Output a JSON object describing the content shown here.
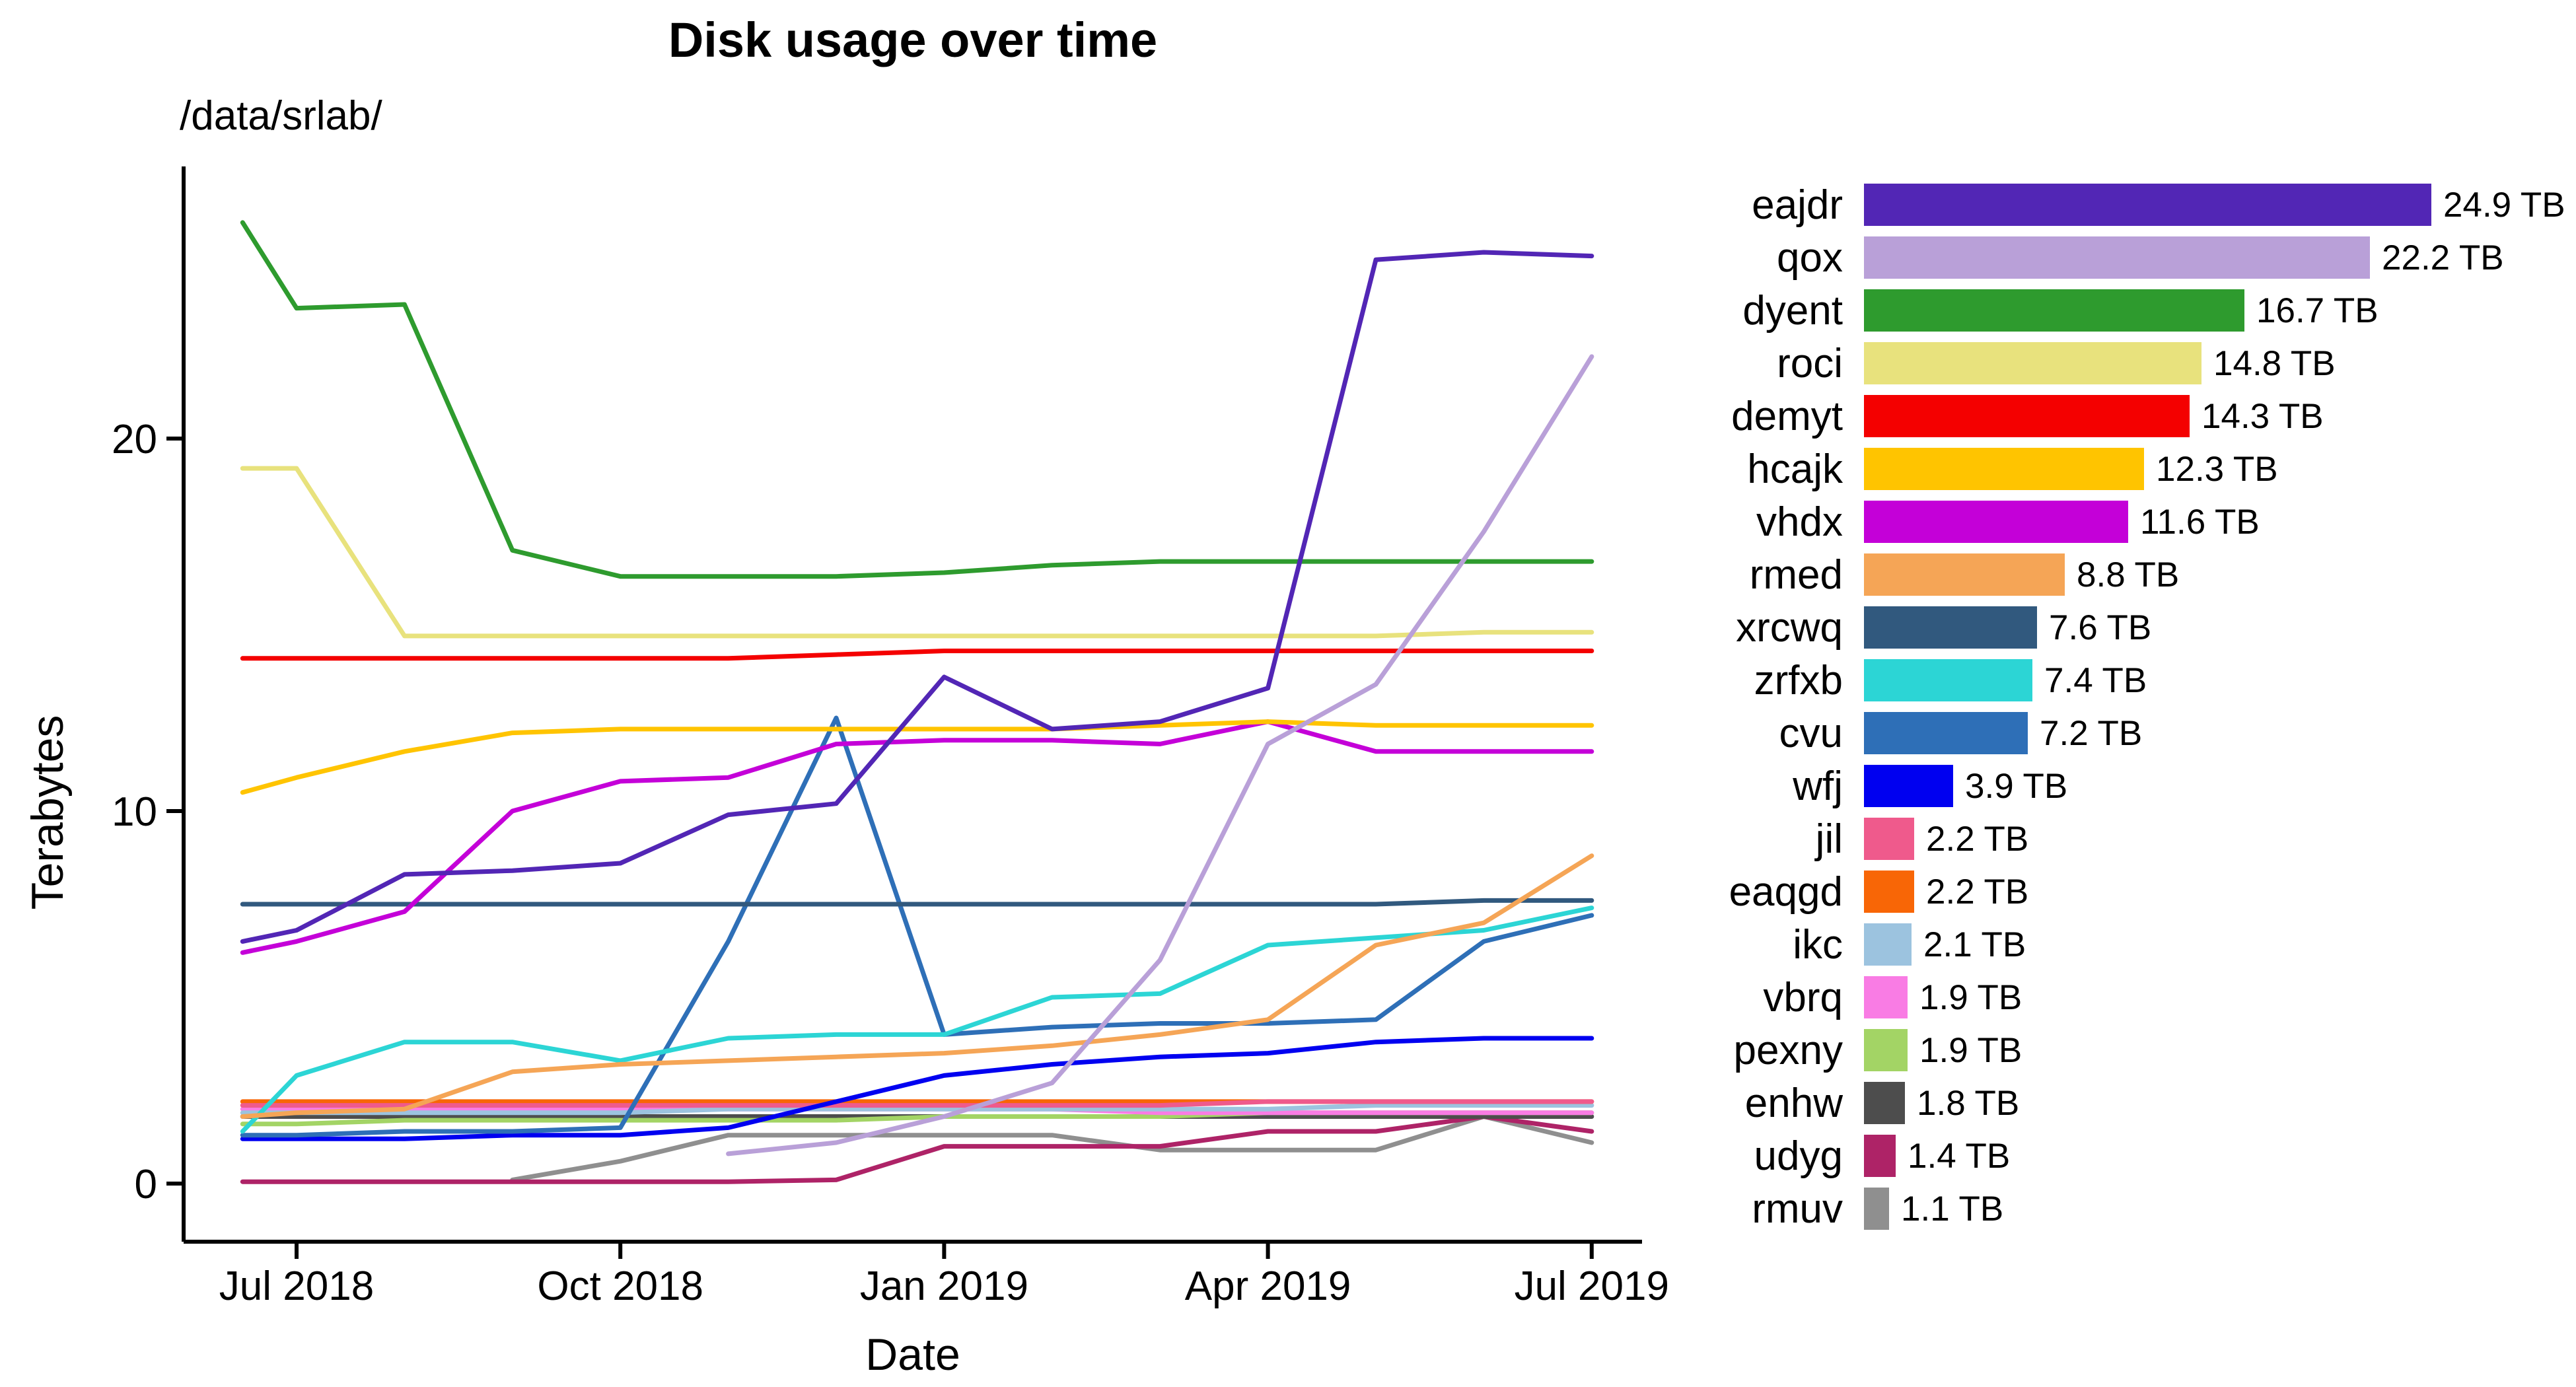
{
  "title": "Disk usage over time",
  "subtitle": "/data/srlab/",
  "chart_data": {
    "type": "line",
    "title": "Disk usage over time",
    "subtitle": "/data/srlab/",
    "xlabel": "Date",
    "ylabel": "Terabytes",
    "unit": "TB",
    "grid": false,
    "legend_position": "right",
    "legend_style": "bar-chart-of-current-usage",
    "x_tick_labels": [
      "Jul 2018",
      "Oct 2018",
      "Jan 2019",
      "Apr 2019",
      "Jul 2019"
    ],
    "x_tick_offsets": [
      0,
      3,
      6,
      9,
      12
    ],
    "y_ticks": [
      0,
      10,
      20
    ],
    "ylim": [
      -1.6,
      27.3
    ],
    "x_points": [
      "Mid-Jun 2018",
      "Jul 2018",
      "Aug 2018",
      "Sep 2018",
      "Oct 2018",
      "Nov 2018",
      "Dec 2018",
      "Jan 2019",
      "Feb 2019",
      "Mar 2019",
      "Apr 2019",
      "May 2019",
      "Jun 2019",
      "Jul 2019"
    ],
    "x_offsets_months": [
      -0.5,
      0,
      1,
      2,
      3,
      4,
      5,
      6,
      7,
      8,
      9,
      10,
      11,
      12
    ],
    "series": [
      {
        "name": "eajdr",
        "color": "#5226b5",
        "usage_tb": 24.9,
        "usage_label": "24.9 TB",
        "values": [
          6.5,
          6.8,
          8.3,
          8.4,
          8.6,
          9.9,
          10.2,
          13.6,
          12.2,
          12.4,
          13.3,
          24.8,
          25.0,
          24.9
        ]
      },
      {
        "name": "qox",
        "color": "#b9a0d8",
        "usage_tb": 22.2,
        "usage_label": "22.2 TB",
        "values": [
          null,
          null,
          null,
          null,
          null,
          0.8,
          1.1,
          1.8,
          2.7,
          6.0,
          11.8,
          13.4,
          17.5,
          22.2
        ]
      },
      {
        "name": "dyent",
        "color": "#2e9b2e",
        "usage_tb": 16.7,
        "usage_label": "16.7 TB",
        "values": [
          25.8,
          23.5,
          23.6,
          17.0,
          16.3,
          16.3,
          16.3,
          16.4,
          16.6,
          16.7,
          16.7,
          16.7,
          16.7,
          16.7
        ]
      },
      {
        "name": "roci",
        "color": "#e8e27d",
        "usage_tb": 14.8,
        "usage_label": "14.8 TB",
        "values": [
          19.2,
          19.2,
          14.7,
          14.7,
          14.7,
          14.7,
          14.7,
          14.7,
          14.7,
          14.7,
          14.7,
          14.7,
          14.8,
          14.8
        ]
      },
      {
        "name": "demyt",
        "color": "#f40000",
        "usage_tb": 14.3,
        "usage_label": "14.3 TB",
        "values": [
          14.1,
          14.1,
          14.1,
          14.1,
          14.1,
          14.1,
          14.2,
          14.3,
          14.3,
          14.3,
          14.3,
          14.3,
          14.3,
          14.3
        ]
      },
      {
        "name": "hcajk",
        "color": "#ffc400",
        "usage_tb": 12.3,
        "usage_label": "12.3 TB",
        "values": [
          10.5,
          10.9,
          11.6,
          12.1,
          12.2,
          12.2,
          12.2,
          12.2,
          12.2,
          12.3,
          12.4,
          12.3,
          12.3,
          12.3
        ]
      },
      {
        "name": "vhdx",
        "color": "#c400d8",
        "usage_tb": 11.6,
        "usage_label": "11.6 TB",
        "values": [
          6.2,
          6.5,
          7.3,
          10.0,
          10.8,
          10.9,
          11.8,
          11.9,
          11.9,
          11.8,
          12.4,
          11.6,
          11.6,
          11.6
        ]
      },
      {
        "name": "rmed",
        "color": "#f5a556",
        "usage_tb": 8.8,
        "usage_label": "8.8 TB",
        "values": [
          1.8,
          1.9,
          2.0,
          3.0,
          3.2,
          3.3,
          3.4,
          3.5,
          3.7,
          4.0,
          4.4,
          6.4,
          7.0,
          8.8
        ]
      },
      {
        "name": "xrcwq",
        "color": "#31597e",
        "usage_tb": 7.6,
        "usage_label": "7.6 TB",
        "values": [
          7.5,
          7.5,
          7.5,
          7.5,
          7.5,
          7.5,
          7.5,
          7.5,
          7.5,
          7.5,
          7.5,
          7.5,
          7.6,
          7.6
        ]
      },
      {
        "name": "zrfxb",
        "color": "#2cd5d5",
        "usage_tb": 7.4,
        "usage_label": "7.4 TB",
        "values": [
          1.4,
          2.9,
          3.8,
          3.8,
          3.3,
          3.9,
          4.0,
          4.0,
          5.0,
          5.1,
          6.4,
          6.6,
          6.8,
          7.4
        ]
      },
      {
        "name": "cvu",
        "color": "#2e6fb7",
        "usage_tb": 7.2,
        "usage_label": "7.2 TB",
        "values": [
          1.3,
          1.3,
          1.4,
          1.4,
          1.5,
          6.5,
          12.5,
          4.0,
          4.2,
          4.3,
          4.3,
          4.4,
          6.5,
          7.2
        ]
      },
      {
        "name": "wfj",
        "color": "#0000f0",
        "usage_tb": 3.9,
        "usage_label": "3.9 TB",
        "values": [
          1.2,
          1.2,
          1.2,
          1.3,
          1.3,
          1.5,
          2.2,
          2.9,
          3.2,
          3.4,
          3.5,
          3.8,
          3.9,
          3.9
        ]
      },
      {
        "name": "jil",
        "color": "#ef5a8c",
        "usage_tb": 2.2,
        "usage_label": "2.2 TB",
        "values": [
          2.1,
          2.1,
          2.1,
          2.1,
          2.1,
          2.1,
          2.1,
          2.1,
          2.1,
          2.1,
          2.2,
          2.2,
          2.2,
          2.2
        ]
      },
      {
        "name": "eaqgd",
        "color": "#f86606",
        "usage_tb": 2.2,
        "usage_label": "2.2 TB",
        "values": [
          2.2,
          2.2,
          2.2,
          2.2,
          2.2,
          2.2,
          2.2,
          2.2,
          2.2,
          2.2,
          2.2,
          2.2,
          2.2,
          2.2
        ]
      },
      {
        "name": "ikc",
        "color": "#9cc3df",
        "usage_tb": 2.1,
        "usage_label": "2.1 TB",
        "values": [
          1.9,
          1.9,
          1.9,
          1.9,
          1.9,
          2.0,
          2.0,
          2.0,
          2.0,
          2.0,
          2.0,
          2.1,
          2.1,
          2.1
        ]
      },
      {
        "name": "vbrq",
        "color": "#f97ce4",
        "usage_tb": 1.9,
        "usage_label": "1.9 TB",
        "values": [
          2.0,
          2.0,
          2.0,
          2.0,
          2.0,
          2.0,
          2.0,
          2.0,
          2.0,
          1.9,
          1.9,
          1.9,
          1.9,
          1.9
        ]
      },
      {
        "name": "pexny",
        "color": "#a3d465",
        "usage_tb": 1.9,
        "usage_label": "1.9 TB",
        "values": [
          1.6,
          1.6,
          1.7,
          1.7,
          1.7,
          1.7,
          1.7,
          1.8,
          1.8,
          1.8,
          1.9,
          1.9,
          1.9,
          1.9
        ]
      },
      {
        "name": "enhw",
        "color": "#4d4d4d",
        "usage_tb": 1.8,
        "usage_label": "1.8 TB",
        "values": [
          1.8,
          1.8,
          1.8,
          1.8,
          1.8,
          1.8,
          1.8,
          1.8,
          1.8,
          1.8,
          1.8,
          1.8,
          1.8,
          1.8
        ]
      },
      {
        "name": "udyg",
        "color": "#ae2367",
        "usage_tb": 1.4,
        "usage_label": "1.4 TB",
        "values": [
          0.05,
          0.05,
          0.05,
          0.05,
          0.05,
          0.05,
          0.1,
          1.0,
          1.0,
          1.0,
          1.4,
          1.4,
          1.8,
          1.4
        ]
      },
      {
        "name": "rmuv",
        "color": "#8f8f8f",
        "usage_tb": 1.1,
        "usage_label": "1.1 TB",
        "values": [
          null,
          null,
          null,
          0.1,
          0.6,
          1.3,
          1.3,
          1.3,
          1.3,
          0.9,
          0.9,
          0.9,
          1.8,
          1.1
        ]
      }
    ]
  }
}
